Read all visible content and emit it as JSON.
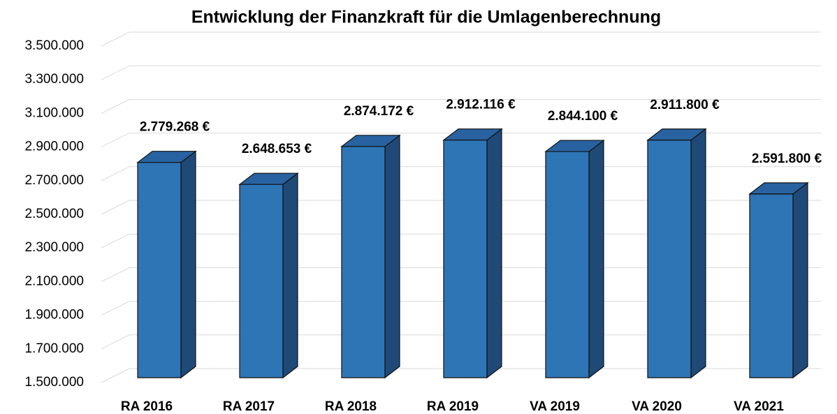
{
  "chart_data": {
    "type": "bar3d",
    "title": "Entwicklung der Finanzkraft für die Umlagenberechnung",
    "categories": [
      "RA 2016",
      "RA 2017",
      "RA 2018",
      "RA 2019",
      "VA 2019",
      "VA 2020",
      "VA 2021"
    ],
    "values": [
      2779268,
      2648653,
      2874172,
      2912116,
      2844100,
      2911800,
      2591800
    ],
    "value_labels": [
      "2.779.268 €",
      "2.648.653 €",
      "2.874.172 €",
      "2.912.116 €",
      "2.844.100 €",
      "2.911.800 €",
      "2.591.800 €"
    ],
    "color": "#2e75b6",
    "ylim": [
      1500000,
      3500000
    ],
    "yticks": [
      {
        "value": 1500000,
        "label": "1.500.000"
      },
      {
        "value": 1700000,
        "label": "1.700.000"
      },
      {
        "value": 1900000,
        "label": "1.900.000"
      },
      {
        "value": 2100000,
        "label": "2.100.000"
      },
      {
        "value": 2300000,
        "label": "2.300.000"
      },
      {
        "value": 2500000,
        "label": "2.500.000"
      },
      {
        "value": 2700000,
        "label": "2.700.000"
      },
      {
        "value": 2900000,
        "label": "2.900.000"
      },
      {
        "value": 3100000,
        "label": "3.100.000"
      },
      {
        "value": 3300000,
        "label": "3.300.000"
      },
      {
        "value": 3500000,
        "label": "3.500.000"
      }
    ],
    "grid": true
  }
}
